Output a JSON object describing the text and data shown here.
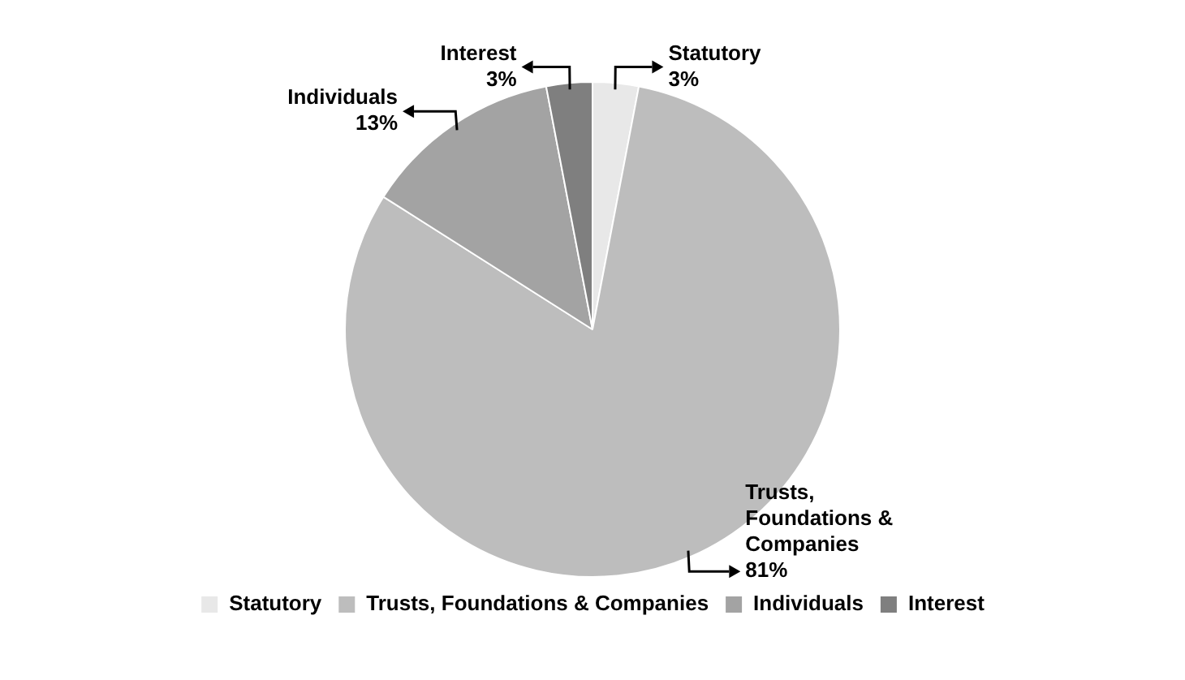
{
  "chart_data": {
    "type": "pie",
    "categories": [
      "Statutory",
      "Trusts, Foundations & Companies",
      "Individuals",
      "Interest"
    ],
    "values": [
      3,
      81,
      13,
      3
    ],
    "colors": [
      "#e8e8e8",
      "#bdbdbd",
      "#a3a3a3",
      "#7f7f7f"
    ],
    "value_labels": [
      "3%",
      "81%",
      "13%",
      "3%"
    ],
    "legend": "bottom"
  }
}
